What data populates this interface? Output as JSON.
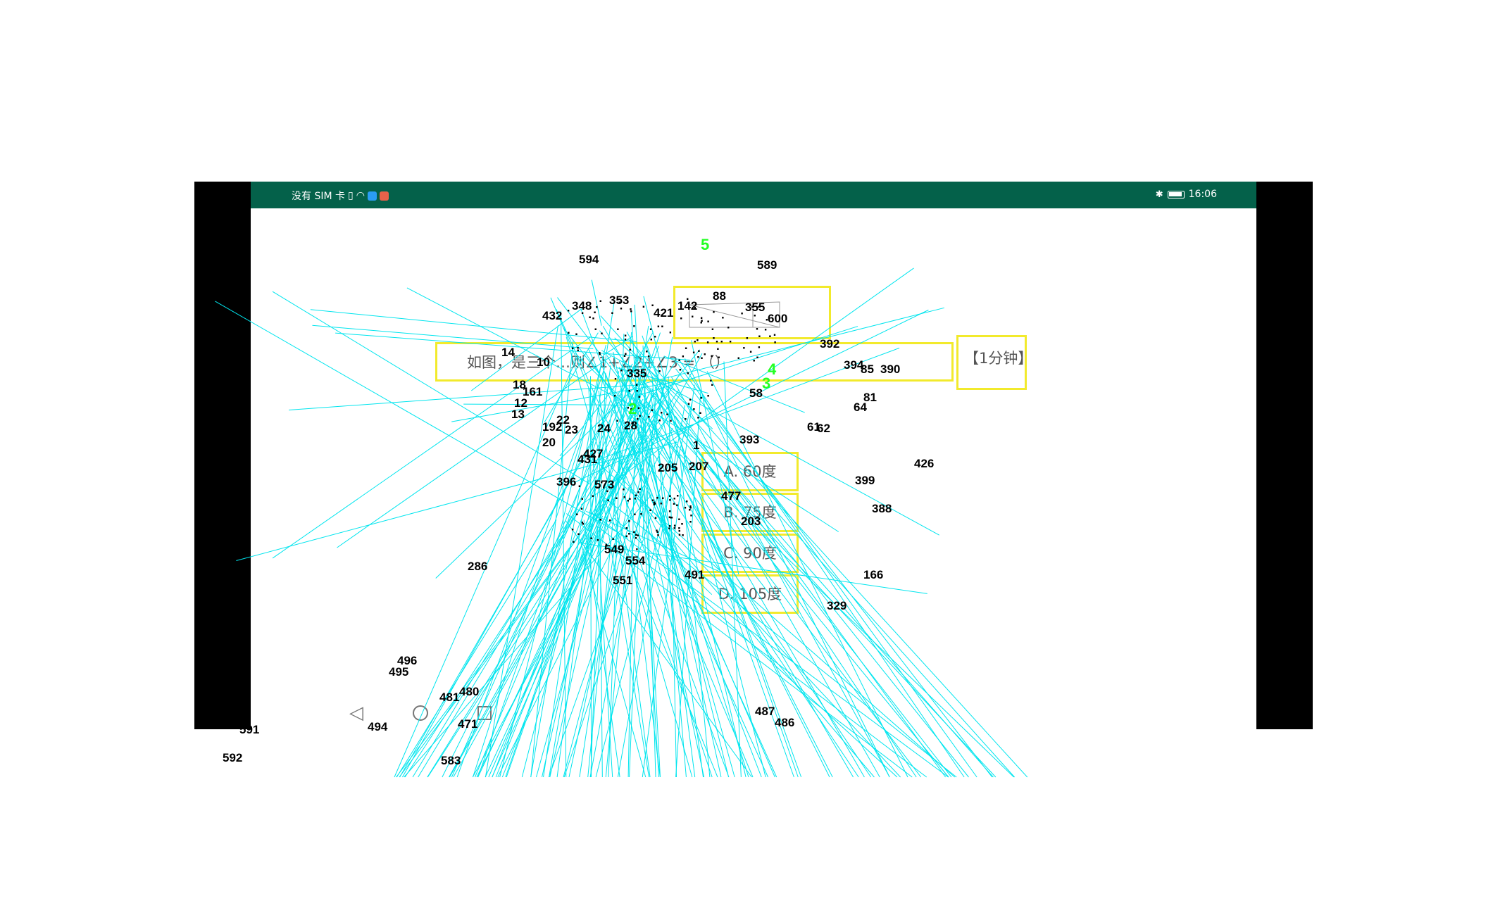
{
  "statusbar": {
    "carrier": "没有 SIM 卡",
    "time": "16:06",
    "colors": {
      "bar": "#04614a",
      "app_icon_1": "#2a9df4",
      "app_icon_2": "#e8624a"
    }
  },
  "question": {
    "text": "如图，是三个…则∠1+∠2+∠3 = （）",
    "timer": "【1分钟】"
  },
  "options": [
    {
      "label": "A. 60度"
    },
    {
      "label": "B. 75度"
    },
    {
      "label": "C. 90度"
    },
    {
      "label": "D. 105度"
    }
  ],
  "navbar": {
    "back_icon": "back-triangle-icon",
    "home_icon": "home-circle-icon",
    "recents_icon": "recents-square-icon"
  },
  "overlay": {
    "highlight_color": "#f2ea2c",
    "line_color": "#00e5ee",
    "green_marker_color": "#22ff22",
    "markers": [
      {
        "t": "5",
        "hl": true
      },
      {
        "t": "589"
      },
      {
        "t": "594"
      },
      {
        "t": "353"
      },
      {
        "t": "432"
      },
      {
        "t": "348"
      },
      {
        "t": "142"
      },
      {
        "t": "88"
      },
      {
        "t": "421"
      },
      {
        "t": "600"
      },
      {
        "t": "392"
      },
      {
        "t": "394"
      },
      {
        "t": "85"
      },
      {
        "t": "390"
      },
      {
        "t": "14"
      },
      {
        "t": "10"
      },
      {
        "t": "18"
      },
      {
        "t": "161"
      },
      {
        "t": "12"
      },
      {
        "t": "13"
      },
      {
        "t": "22"
      },
      {
        "t": "192"
      },
      {
        "t": "23"
      },
      {
        "t": "20"
      },
      {
        "t": "24"
      },
      {
        "t": "28"
      },
      {
        "t": "81"
      },
      {
        "t": "64"
      },
      {
        "t": "61"
      },
      {
        "t": "62"
      },
      {
        "t": "426"
      },
      {
        "t": "399"
      },
      {
        "t": "388"
      },
      {
        "t": "396"
      },
      {
        "t": "573"
      },
      {
        "t": "477"
      },
      {
        "t": "203"
      },
      {
        "t": "207"
      },
      {
        "t": "205"
      },
      {
        "t": "427"
      },
      {
        "t": "431"
      },
      {
        "t": "166"
      },
      {
        "t": "329"
      },
      {
        "t": "286"
      },
      {
        "t": "554"
      },
      {
        "t": "549"
      },
      {
        "t": "551"
      },
      {
        "t": "491"
      },
      {
        "t": "496"
      },
      {
        "t": "495"
      },
      {
        "t": "481"
      },
      {
        "t": "480"
      },
      {
        "t": "487"
      },
      {
        "t": "486"
      },
      {
        "t": "591"
      },
      {
        "t": "494"
      },
      {
        "t": "471"
      },
      {
        "t": "592"
      },
      {
        "t": "583"
      },
      {
        "t": "335"
      },
      {
        "t": "355"
      },
      {
        "t": "58"
      },
      {
        "t": "393"
      },
      {
        "t": "1"
      },
      {
        "t": "2",
        "hl": true
      },
      {
        "t": "3",
        "hl": true
      },
      {
        "t": "4",
        "hl": true
      }
    ]
  }
}
